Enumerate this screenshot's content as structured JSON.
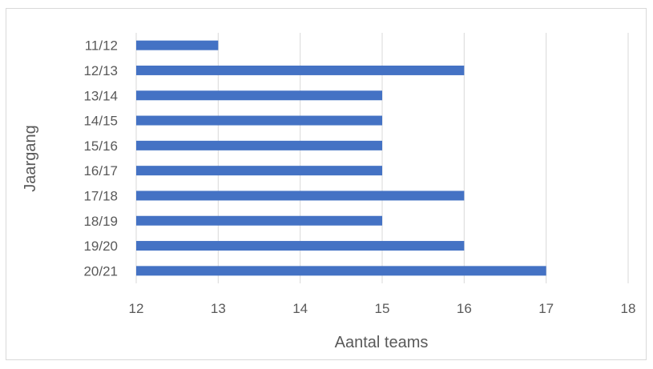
{
  "chart_data": {
    "type": "bar",
    "orientation": "horizontal",
    "categories": [
      "11/12",
      "12/13",
      "13/14",
      "14/15",
      "15/16",
      "16/17",
      "17/18",
      "18/19",
      "19/20",
      "20/21"
    ],
    "values": [
      13,
      16,
      15,
      15,
      15,
      15,
      16,
      15,
      16,
      17
    ],
    "xlabel": "Aantal teams",
    "ylabel": "Jaargang",
    "xlim": [
      12,
      18
    ],
    "xticks": [
      12,
      13,
      14,
      15,
      16,
      17,
      18
    ],
    "grid": "vertical",
    "bar_color": "#4472c4",
    "grid_color": "#d9d9d9"
  }
}
